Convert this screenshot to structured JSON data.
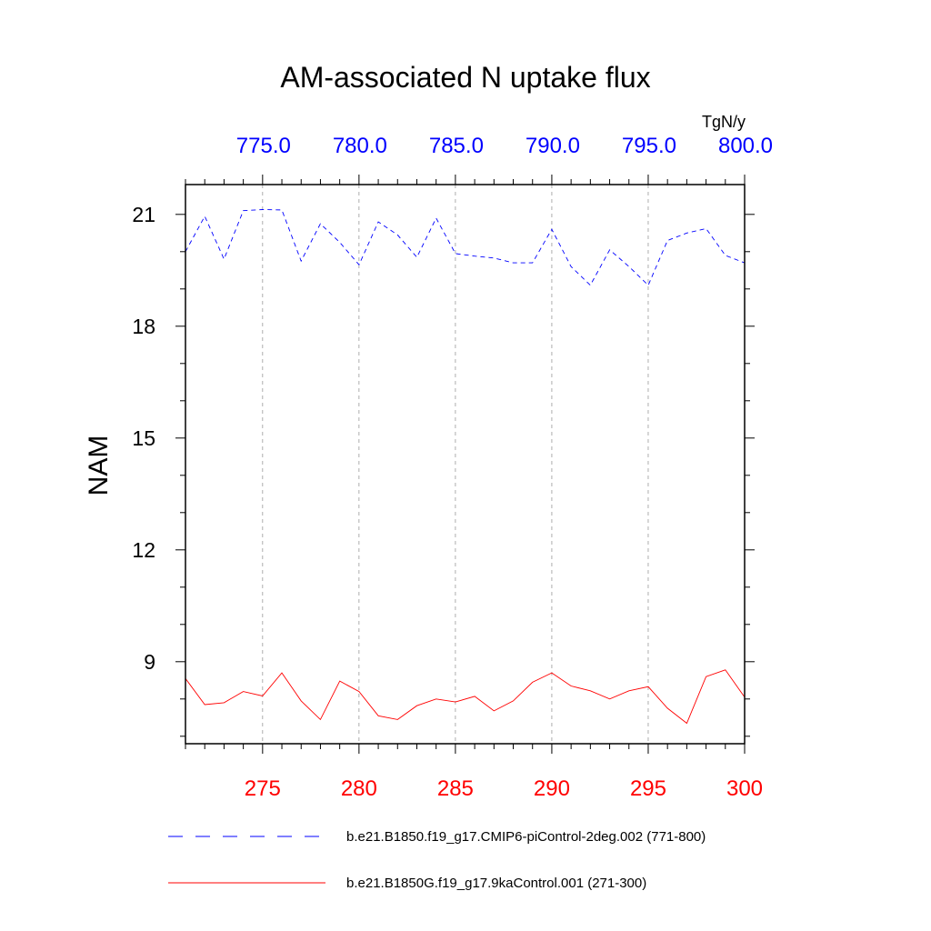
{
  "chart_data": {
    "type": "line",
    "title": "AM-associated N uptake flux",
    "units": "TgN/y",
    "ylabel": "NAM",
    "ylim": [
      6.8,
      21.8
    ],
    "yticks": [
      9,
      12,
      15,
      18,
      21
    ],
    "ytick_labels": [
      "9",
      "12",
      "15",
      "18",
      "21"
    ],
    "x_bottom": {
      "range": [
        271,
        300
      ],
      "ticks": [
        275,
        280,
        285,
        290,
        295,
        300
      ],
      "tick_labels": [
        "275",
        "280",
        "285",
        "290",
        "295",
        "300"
      ],
      "color": "#ff0000"
    },
    "x_top": {
      "range": [
        771,
        800
      ],
      "ticks": [
        775,
        780,
        785,
        790,
        795,
        800
      ],
      "tick_labels": [
        "775.0",
        "780.0",
        "785.0",
        "790.0",
        "795.0",
        "800.0"
      ],
      "color": "#0000ff"
    },
    "grid": "vertical dashed at labeled ticks",
    "series": [
      {
        "name": "b.e21.B1850.f19_g17.CMIP6-piControl-2deg.002 (771-800)",
        "color": "#0000ff",
        "style": "dashed",
        "axis": "top",
        "x": [
          771,
          772,
          773,
          774,
          775,
          776,
          777,
          778,
          779,
          780,
          781,
          782,
          783,
          784,
          785,
          786,
          787,
          788,
          789,
          790,
          791,
          792,
          793,
          794,
          795,
          796,
          797,
          798,
          799,
          800
        ],
        "values": [
          20.0,
          20.95,
          19.8,
          21.1,
          21.13,
          21.12,
          19.75,
          20.75,
          20.25,
          19.65,
          20.8,
          20.45,
          19.85,
          20.9,
          19.95,
          19.88,
          19.83,
          19.7,
          19.7,
          20.6,
          19.6,
          19.1,
          20.05,
          19.6,
          19.1,
          20.3,
          20.5,
          20.62,
          19.9,
          19.7
        ]
      },
      {
        "name": "b.e21.B1850G.f19_g17.9kaControl.001 (271-300)",
        "color": "#ff0000",
        "style": "solid",
        "axis": "bottom",
        "x": [
          271,
          272,
          273,
          274,
          275,
          276,
          277,
          278,
          279,
          280,
          281,
          282,
          283,
          284,
          285,
          286,
          287,
          288,
          289,
          290,
          291,
          292,
          293,
          294,
          295,
          296,
          297,
          298,
          299,
          300
        ],
        "values": [
          8.55,
          7.85,
          7.9,
          8.2,
          8.08,
          8.7,
          7.95,
          7.45,
          8.48,
          8.2,
          7.55,
          7.45,
          7.82,
          8.0,
          7.92,
          8.07,
          7.68,
          7.95,
          8.45,
          8.7,
          8.35,
          8.22,
          8.0,
          8.22,
          8.33,
          7.75,
          7.35,
          8.6,
          8.78,
          8.05
        ]
      }
    ],
    "legend_position": "bottom"
  }
}
